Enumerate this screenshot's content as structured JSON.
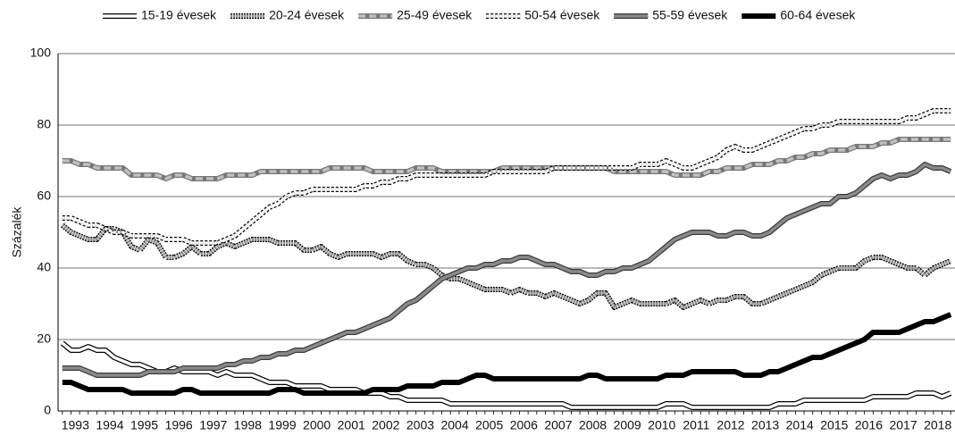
{
  "chart_data": {
    "type": "line",
    "y_label": "Százalék",
    "categories": [
      "1993",
      null,
      null,
      null,
      "1994",
      null,
      null,
      null,
      "1995",
      null,
      null,
      null,
      "1996",
      null,
      null,
      null,
      "1997",
      null,
      null,
      null,
      "1998",
      null,
      null,
      null,
      "1999",
      null,
      null,
      null,
      "2000",
      null,
      null,
      null,
      "2001",
      null,
      null,
      null,
      "2002",
      null,
      null,
      null,
      "2003",
      null,
      null,
      null,
      "2004",
      null,
      null,
      null,
      "2005",
      null,
      null,
      null,
      "2006",
      null,
      null,
      null,
      "2007",
      null,
      null,
      null,
      "2008",
      null,
      null,
      null,
      "2009",
      null,
      null,
      null,
      "2010",
      null,
      null,
      null,
      "2011",
      null,
      null,
      null,
      "2012",
      null,
      null,
      null,
      "2013",
      null,
      null,
      null,
      "2014",
      null,
      null,
      null,
      "2015",
      null,
      null,
      null,
      "2016",
      null,
      null,
      null,
      "2017",
      null,
      null,
      null,
      "2018",
      null,
      null,
      null
    ],
    "ylim": [
      0,
      100
    ],
    "yticks": [
      0,
      20,
      40,
      60,
      80,
      100
    ],
    "grid": true,
    "legend": "top",
    "series": [
      {
        "name": "15-19 évesek",
        "color": "#ffffff",
        "outline": "#000000",
        "dash": "none",
        "values": [
          19,
          17,
          17,
          18,
          17,
          17,
          15,
          14,
          13,
          13,
          12,
          11,
          11,
          12,
          11,
          11,
          11,
          11,
          10,
          11,
          10,
          10,
          10,
          9,
          8,
          8,
          8,
          7,
          7,
          7,
          7,
          6,
          6,
          6,
          6,
          5,
          5,
          5,
          4,
          4,
          3,
          3,
          3,
          3,
          3,
          2,
          2,
          2,
          2,
          2,
          2,
          2,
          2,
          2,
          2,
          2,
          2,
          2,
          2,
          1,
          1,
          1,
          1,
          1,
          1,
          1,
          1,
          1,
          1,
          1,
          2,
          2,
          2,
          1,
          1,
          1,
          1,
          1,
          1,
          1,
          1,
          1,
          1,
          2,
          2,
          2,
          3,
          3,
          3,
          3,
          3,
          3,
          3,
          3,
          4,
          4,
          4,
          4,
          4,
          5,
          5,
          5,
          4,
          5
        ]
      },
      {
        "name": "20-24 évesek",
        "color": "#999999",
        "outline": "#000000",
        "dash": "2 1",
        "values": [
          52,
          50,
          49,
          48,
          48,
          51,
          51,
          50,
          46,
          45,
          48,
          47,
          43,
          43,
          44,
          46,
          44,
          44,
          46,
          47,
          46,
          47,
          48,
          48,
          48,
          47,
          47,
          47,
          45,
          45,
          46,
          44,
          43,
          44,
          44,
          44,
          44,
          43,
          44,
          44,
          42,
          41,
          41,
          40,
          38,
          37,
          37,
          36,
          35,
          34,
          34,
          34,
          33,
          34,
          33,
          33,
          32,
          33,
          32,
          31,
          30,
          31,
          33,
          33,
          29,
          30,
          31,
          30,
          30,
          30,
          30,
          31,
          29,
          30,
          31,
          30,
          31,
          31,
          32,
          32,
          30,
          30,
          31,
          32,
          33,
          34,
          35,
          36,
          38,
          39,
          40,
          40,
          40,
          42,
          43,
          43,
          42,
          41,
          40,
          40,
          38,
          40,
          41,
          42
        ]
      },
      {
        "name": "25-49 évesek",
        "color": "#c0c0c0",
        "outline": "#777777",
        "dash": "8 4",
        "values": [
          70,
          70,
          69,
          69,
          68,
          68,
          68,
          68,
          66,
          66,
          66,
          66,
          65,
          66,
          66,
          65,
          65,
          65,
          65,
          66,
          66,
          66,
          66,
          67,
          67,
          67,
          67,
          67,
          67,
          67,
          67,
          68,
          68,
          68,
          68,
          68,
          67,
          67,
          67,
          67,
          67,
          68,
          68,
          68,
          67,
          67,
          67,
          67,
          67,
          67,
          67,
          68,
          68,
          68,
          68,
          68,
          68,
          68,
          68,
          68,
          68,
          68,
          68,
          68,
          67,
          67,
          67,
          67,
          67,
          67,
          67,
          66,
          66,
          66,
          66,
          67,
          67,
          68,
          68,
          68,
          69,
          69,
          69,
          70,
          70,
          71,
          71,
          72,
          72,
          73,
          73,
          73,
          74,
          74,
          74,
          75,
          75,
          76,
          76,
          76,
          76,
          76,
          76,
          76
        ]
      },
      {
        "name": "50-54 évesek",
        "color": "#ffffff",
        "outline": "#000000",
        "dash": "3 2",
        "values": [
          54,
          54,
          53,
          52,
          52,
          51,
          50,
          50,
          49,
          49,
          49,
          49,
          48,
          48,
          48,
          47,
          47,
          47,
          47,
          48,
          49,
          51,
          53,
          55,
          57,
          58,
          60,
          61,
          61,
          62,
          62,
          62,
          62,
          62,
          62,
          63,
          63,
          64,
          64,
          65,
          65,
          66,
          66,
          66,
          66,
          66,
          66,
          66,
          66,
          66,
          67,
          67,
          67,
          67,
          67,
          67,
          67,
          68,
          68,
          68,
          68,
          68,
          68,
          68,
          68,
          68,
          68,
          69,
          69,
          69,
          70,
          69,
          68,
          68,
          69,
          70,
          71,
          73,
          74,
          73,
          73,
          74,
          75,
          76,
          77,
          78,
          79,
          79,
          80,
          80,
          81,
          81,
          81,
          81,
          81,
          81,
          81,
          81,
          82,
          82,
          83,
          84,
          84,
          84
        ]
      },
      {
        "name": "55-59 évesek",
        "color": "#8a8a8a",
        "outline": "#3a3a3a",
        "dash": "none",
        "values": [
          12,
          12,
          12,
          11,
          10,
          10,
          10,
          10,
          10,
          10,
          11,
          11,
          11,
          11,
          12,
          12,
          12,
          12,
          12,
          13,
          13,
          14,
          14,
          15,
          15,
          16,
          16,
          17,
          17,
          18,
          19,
          20,
          21,
          22,
          22,
          23,
          24,
          25,
          26,
          28,
          30,
          31,
          33,
          35,
          37,
          38,
          39,
          40,
          40,
          41,
          41,
          42,
          42,
          43,
          43,
          42,
          41,
          41,
          40,
          39,
          39,
          38,
          38,
          39,
          39,
          40,
          40,
          41,
          42,
          44,
          46,
          48,
          49,
          50,
          50,
          50,
          49,
          49,
          50,
          50,
          49,
          49,
          50,
          52,
          54,
          55,
          56,
          57,
          58,
          58,
          60,
          60,
          61,
          63,
          65,
          66,
          65,
          66,
          66,
          67,
          69,
          68,
          68,
          67
        ]
      },
      {
        "name": "60-64 évesek",
        "color": "#000000",
        "outline": "#000000",
        "dash": "none",
        "values": [
          8,
          8,
          7,
          6,
          6,
          6,
          6,
          6,
          5,
          5,
          5,
          5,
          5,
          5,
          6,
          6,
          5,
          5,
          5,
          5,
          5,
          5,
          5,
          5,
          5,
          6,
          6,
          6,
          5,
          5,
          5,
          5,
          5,
          5,
          5,
          5,
          6,
          6,
          6,
          6,
          7,
          7,
          7,
          7,
          8,
          8,
          8,
          9,
          10,
          10,
          9,
          9,
          9,
          9,
          9,
          9,
          9,
          9,
          9,
          9,
          9,
          10,
          10,
          9,
          9,
          9,
          9,
          9,
          9,
          9,
          10,
          10,
          10,
          11,
          11,
          11,
          11,
          11,
          11,
          10,
          10,
          10,
          11,
          11,
          12,
          13,
          14,
          15,
          15,
          16,
          17,
          18,
          19,
          20,
          22,
          22,
          22,
          22,
          23,
          24,
          25,
          25,
          26,
          27
        ]
      }
    ]
  }
}
